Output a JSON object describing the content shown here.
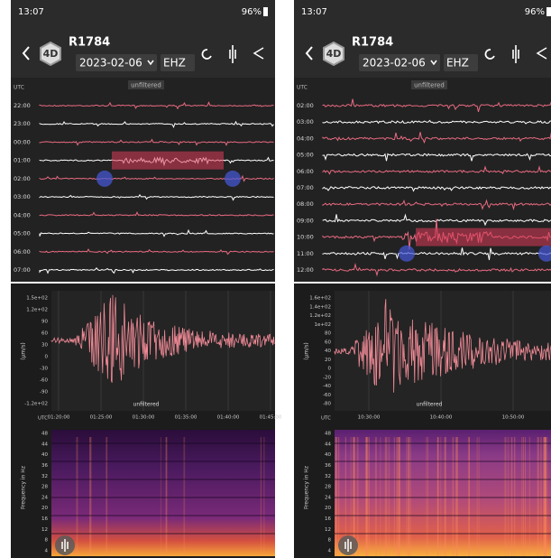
{
  "screens": [
    {
      "status": {
        "time": "13:07",
        "battery": "96%"
      },
      "header": {
        "network": "4D",
        "station": "R1784",
        "date": "2023-02-06",
        "channel": "EHZ"
      },
      "helicorder": {
        "timezone": "UTC",
        "filter": "unfiltered",
        "rows": [
          "22:00",
          "23:00",
          "00:00",
          "01:00",
          "02:00",
          "03:00",
          "04:00",
          "05:00",
          "06:00",
          "07:00"
        ]
      },
      "waveform": {
        "unit": "(µm/s)",
        "filter": "unfiltered",
        "timezone": "UTC",
        "yticks": [
          "1.5e+02",
          "1.2e+02",
          "90",
          "60",
          "30",
          "0",
          "-30",
          "-60",
          "-90",
          "-1.2e+02"
        ],
        "xticks": [
          "01:20:00",
          "01:25:00",
          "01:30:00",
          "01:35:00",
          "01:40:00",
          "01:45:00"
        ]
      },
      "spectrogram": {
        "axis_label": "Frequency in Hz",
        "yticks": [
          "48",
          "44",
          "40",
          "36",
          "32",
          "28",
          "24",
          "20",
          "16",
          "12",
          "8",
          "4"
        ]
      }
    },
    {
      "status": {
        "time": "13:07",
        "battery": "96%"
      },
      "header": {
        "network": "4D",
        "station": "R1784",
        "date": "2023-02-06",
        "channel": "EHZ"
      },
      "helicorder": {
        "timezone": "UTC",
        "filter": "unfiltered",
        "rows": [
          "02:00",
          "03:00",
          "04:00",
          "05:00",
          "06:00",
          "07:00",
          "08:00",
          "09:00",
          "10:00",
          "11:00",
          "12:00"
        ]
      },
      "waveform": {
        "unit": "(µm/s)",
        "filter": "unfiltered",
        "timezone": "UTC",
        "yticks": [
          "1.6e+02",
          "1.4e+02",
          "1.2e+02",
          "1e+02",
          "80",
          "60",
          "40",
          "20",
          "0",
          "-20",
          "-40",
          "-60",
          "-80"
        ],
        "xticks": [
          "10:30:00",
          "10:40:00",
          "10:50:00"
        ]
      },
      "spectrogram": {
        "axis_label": "Frequency in Hz",
        "yticks": [
          "48",
          "44",
          "40",
          "36",
          "32",
          "28",
          "24",
          "20",
          "16",
          "12",
          "8",
          "4"
        ]
      }
    }
  ]
}
